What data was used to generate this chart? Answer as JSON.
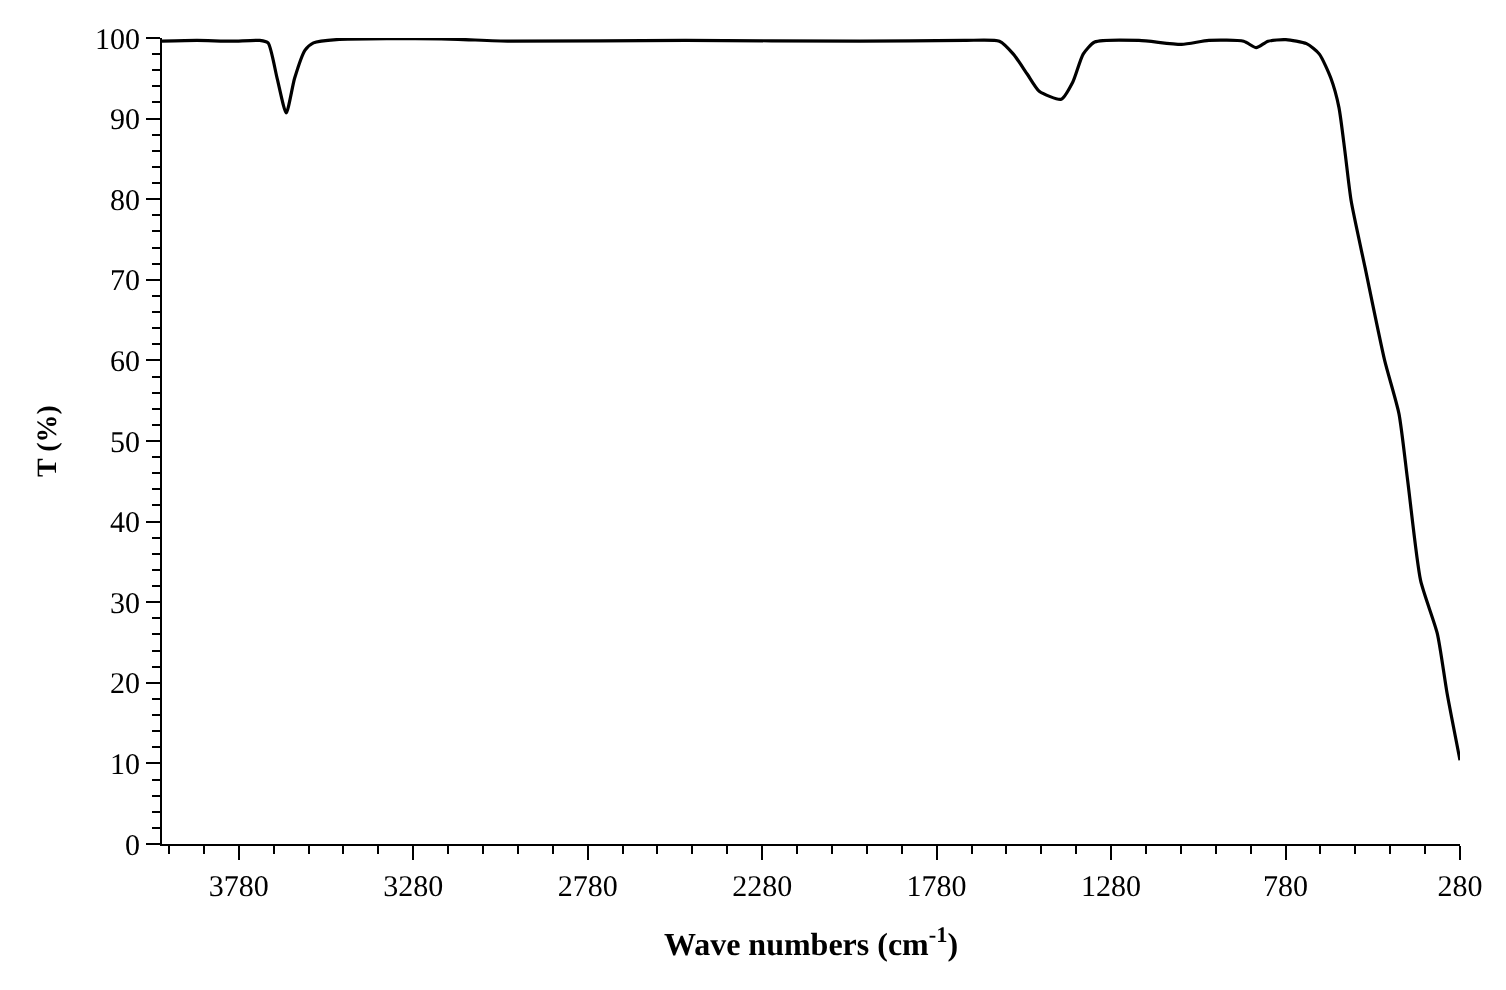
{
  "chart_data": {
    "type": "line",
    "xlabel": "Wave numbers (cm$^{-1}$)",
    "ylabel": "T (%)",
    "xlim": [
      4000,
      280
    ],
    "xticks": [
      3780,
      3280,
      2780,
      2280,
      1780,
      1280,
      780,
      280
    ],
    "ylim": [
      0,
      100
    ],
    "yticks": [
      0,
      10,
      20,
      30,
      40,
      50,
      60,
      70,
      80,
      90,
      100
    ],
    "marker": "none",
    "line_style": "solid",
    "series": [
      {
        "color": "#000000",
        "x": [
          4000,
          3900,
          3800,
          3720,
          3696,
          3670,
          3644,
          3620,
          3590,
          3566,
          3500,
          3200,
          3000,
          2500,
          2000,
          1700,
          1600,
          1560,
          1520,
          1486,
          1423,
          1390,
          1360,
          1327,
          1200,
          1078,
          1000,
          900,
          864,
          830,
          779,
          720,
          683,
          650,
          627,
          610,
          592,
          552,
          496,
          455,
          430,
          393,
          345,
          317,
          280
        ],
        "values": [
          99.6,
          99.7,
          99.6,
          99.7,
          99.4,
          95,
          90.7,
          95,
          98.5,
          99.4,
          99.8,
          99.9,
          99.6,
          99.7,
          99.6,
          99.7,
          99.6,
          98,
          95.5,
          93.4,
          92.4,
          94.5,
          98,
          99.5,
          99.7,
          99.2,
          99.7,
          99.6,
          98.8,
          99.6,
          99.8,
          99.3,
          98.0,
          95,
          91.4,
          86,
          79.8,
          71.5,
          60.0,
          53.4,
          45.1,
          32.7,
          26.1,
          18.7,
          10.4
        ]
      }
    ]
  }
}
